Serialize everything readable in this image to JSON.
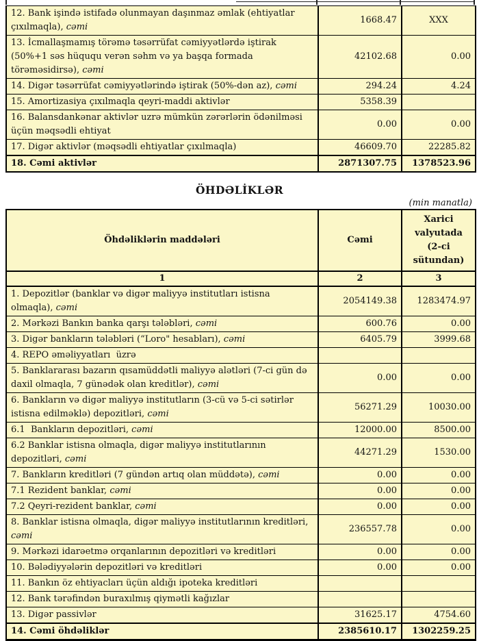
{
  "colors": {
    "cell_yellow": "#fbf7c8",
    "cell_white": "#ffffff",
    "border": "#000000",
    "text": "#141414"
  },
  "assets_table": {
    "rows": [
      {
        "label": "12. Bank işində istifadə olunmayan daşınmaz əmlak (ehtiyatlar çıxılmaqla), ",
        "italic_suffix": "cəmi",
        "total": "1668.47",
        "foreign": "XXX",
        "foreign_center": true
      },
      {
        "label": "13. İcmallaşmamış törəmə təsərrüfat cəmiyyətlərdə iştirak (50%+1 səs hüququ verən səhm və ya başqa formada törəməsidirsə), ",
        "italic_suffix": "cəmi",
        "total": "42102.68",
        "foreign": "0.00"
      },
      {
        "label": "14. Digər təsərrüfat cəmiyyətlərində iştirak (50%-dən az), ",
        "italic_suffix": "cəmi",
        "total": "294.24",
        "foreign": "4.24"
      },
      {
        "label": "15. Amortizasiya çıxılmaqla qeyri-maddi aktivlər",
        "italic_suffix": "",
        "total": "5358.39",
        "foreign": "",
        "total_white": true,
        "foreign_white": true
      },
      {
        "label": "16. Balansdankənar aktivlər uzrə mümkün zərərlərin ödənilməsi üçün məqsədli ehtiyat",
        "italic_suffix": "",
        "total": "0.00",
        "foreign": "0.00"
      },
      {
        "label": "17. Digər aktivlər (məqsədli ehtiyatlar çıxılmaqla)",
        "italic_suffix": "",
        "total": "46609.70",
        "foreign": "22285.82"
      },
      {
        "label": "18. Cəmi aktivlər",
        "italic_suffix": "",
        "total": "2871307.75",
        "foreign": "1378523.96",
        "bold": true
      }
    ]
  },
  "liabilities_section": {
    "heading": "ÖHDƏLİKLƏR",
    "unit_note": "(min manatla)",
    "table": {
      "headers": {
        "items": "Öhdəliklərin maddələri",
        "total": "Cəmi",
        "foreign": "Xarici valyutada (2-ci sütundan)"
      },
      "numbering": {
        "col1": "1",
        "col2": "2",
        "col3": "3"
      },
      "rows": [
        {
          "label": "1. Depozitlər (banklar və digər maliyyə institutları istisna olmaqla), ",
          "italic_suffix": "cəmi",
          "total": "2054149.38",
          "foreign": "1283474.97"
        },
        {
          "label": "2. Mərkəzi Bankın banka qarşı tələbləri, ",
          "italic_suffix": "cəmi",
          "total": "600.76",
          "foreign": "0.00"
        },
        {
          "label": "3. Digər bankların tələbləri (“Loro\" hesabları), ",
          "italic_suffix": "cəmi",
          "total": "6405.79",
          "foreign": "3999.68"
        },
        {
          "label": "4. REPO əməliyyatları  üzrə",
          "italic_suffix": "",
          "total": "",
          "foreign": "",
          "total_white": true,
          "foreign_white": true
        },
        {
          "label": "5. Banklararası bazarın qısamüddətli maliyyə alətləri (7-ci gün də daxil olmaqla, 7 günədək olan kreditlər), ",
          "italic_suffix": "cəmi",
          "total": "0.00",
          "foreign": "0.00"
        },
        {
          "label": "6. Bankların və digər maliyyə institutların (3-cü və 5-ci sətirlər istisna edilməklə) depozitləri, ",
          "italic_suffix": "cəmi",
          "total": "56271.29",
          "foreign": "10030.00"
        },
        {
          "label": "6.1  Bankların depozitləri, ",
          "italic_suffix": "cəmi",
          "total": "12000.00",
          "foreign": "8500.00"
        },
        {
          "label": "6.2 Banklar istisna olmaqla, digər maliyyə institutlarının depozitləri, ",
          "italic_suffix": "cəmi",
          "total": "44271.29",
          "foreign": "1530.00"
        },
        {
          "label": "7. Bankların kreditləri (7 gündən artıq olan müddətə), ",
          "italic_suffix": "cəmi",
          "total": "0.00",
          "foreign": "0.00"
        },
        {
          "label": "7.1 Rezident banklar, ",
          "italic_suffix": "cəmi",
          "total": "0.00",
          "foreign": "0.00"
        },
        {
          "label": "7.2 Qeyri-rezident banklar, ",
          "italic_suffix": "cəmi",
          "total": "0.00",
          "foreign": "0.00"
        },
        {
          "label": "8. Banklar istisna olmaqla, digər maliyyə institutlarının kreditləri, ",
          "italic_suffix": "cəmi",
          "total": "236557.78",
          "foreign": "0.00"
        },
        {
          "label": "9. Mərkəzi idarəetmə orqanlarının depozitləri və kreditləri",
          "italic_suffix": "",
          "total": "0.00",
          "foreign": "0.00",
          "total_white": true,
          "foreign_white": true
        },
        {
          "label": "10. Bələdiyyələrin depozitləri və kreditləri",
          "italic_suffix": "",
          "total": "0.00",
          "foreign": "0.00",
          "total_white": true,
          "foreign_white": true
        },
        {
          "label": "11. Bankın öz ehtiyacları üçün aldığı ipoteka kreditləri",
          "italic_suffix": "",
          "total": "",
          "foreign": "",
          "total_white": true,
          "foreign_white": true
        },
        {
          "label": "12. Bank tərəfindən buraxılmış qiymətli kağızlar",
          "italic_suffix": "",
          "total": "",
          "foreign": "",
          "total_white": true,
          "foreign_white": true
        },
        {
          "label": "13. Digər passivlər",
          "italic_suffix": "",
          "total": "31625.17",
          "foreign": "4754.60"
        },
        {
          "label": "14. Cəmi öhdəliklər",
          "italic_suffix": "",
          "total": "2385610.17",
          "foreign": "1302259.25",
          "bold": true
        }
      ]
    }
  }
}
